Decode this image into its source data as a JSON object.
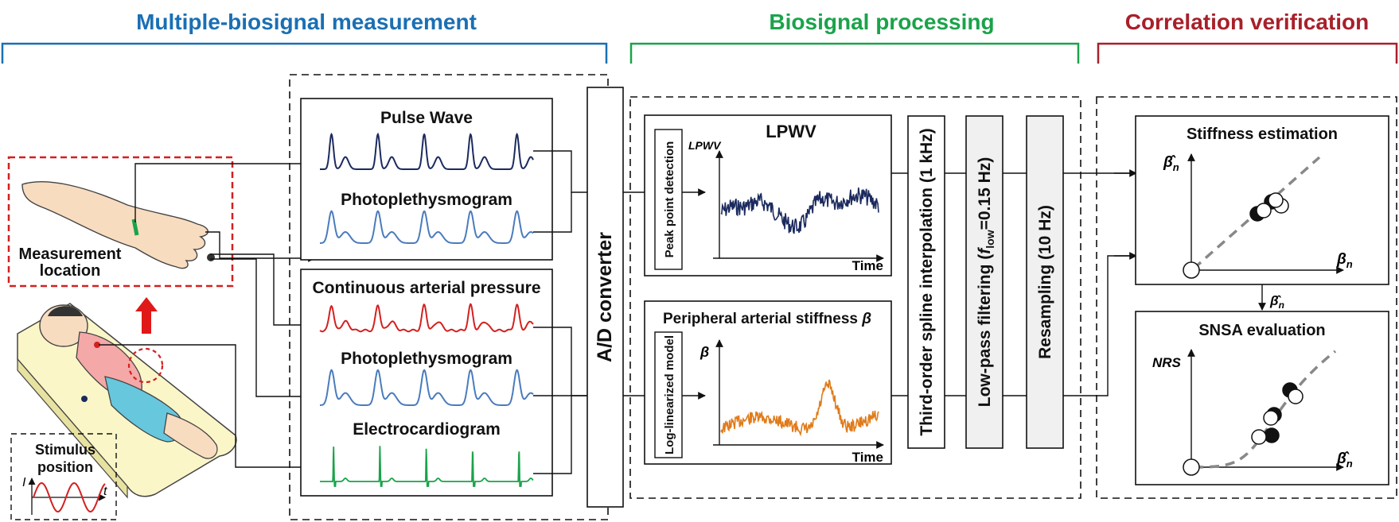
{
  "sections": {
    "measurement": {
      "title": "Multiple-biosignal measurement",
      "color": "#1a6fb4"
    },
    "processing": {
      "title": "Biosignal processing",
      "color": "#1aa34a"
    },
    "verification": {
      "title": "Correlation verification",
      "color": "#a8202a"
    }
  },
  "patient": {
    "measurement_location": [
      "Measurement",
      "location"
    ],
    "stimulus_position": [
      "Stimulus",
      "position"
    ],
    "stimulus_axis_i": "I",
    "stimulus_axis_t": "t"
  },
  "signals": {
    "upper_box": [
      "Pulse Wave",
      "Photoplethysmogram"
    ],
    "lower_box": [
      "Continuous arterial pressure",
      "Photoplethysmogram",
      "Electrocardiogram"
    ],
    "colors": {
      "pulse": "#1b2a5e",
      "ppg": "#4a7bbd",
      "pressure": "#d42020",
      "ecg": "#1aa34a"
    }
  },
  "converter": "A/D converter",
  "lpwv_panel": {
    "title": "LPWV",
    "method": "Peak point detection",
    "ylabel": "LPWV",
    "xlabel": "Time",
    "color": "#1b2a5e"
  },
  "beta_panel": {
    "title": "Peripheral arterial stiffness",
    "symbol": "β",
    "method": "Log-linearized model",
    "ylabel": "β",
    "xlabel": "Time",
    "color": "#e07b1a"
  },
  "steps": {
    "interpolation": "Third-order spline interpolation (1 kHz)",
    "lowpass_prefix": "Low-pass filtering (",
    "lowpass_var": "f",
    "lowpass_sub": "low",
    "lowpass_suffix": "=0.15 Hz)",
    "resampling": "Resampling (10 Hz)"
  },
  "stiffness": {
    "title": "Stiffness estimation",
    "ylabel": "β̂",
    "ysub": "n",
    "xlabel": "β",
    "xsub": "n"
  },
  "arrow_label": {
    "symbol": "β̂",
    "sub": "n"
  },
  "snsa": {
    "title": "SNSA evaluation",
    "ylabel": "NRS",
    "xlabel": "β̂",
    "xsub": "n"
  }
}
